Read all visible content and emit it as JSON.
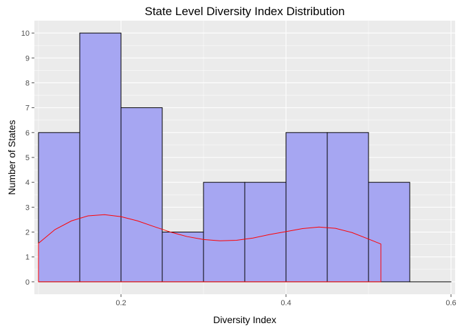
{
  "chart_data": {
    "type": "bar",
    "title": "State Level Diversity Index Distribution",
    "xlabel": "Diversity Index",
    "ylabel": "Number of States",
    "xlim": [
      0.095,
      0.605
    ],
    "ylim": [
      -0.5,
      10.5
    ],
    "x_ticks": [
      0.2,
      0.4,
      0.6
    ],
    "y_ticks": [
      0,
      1,
      2,
      3,
      4,
      5,
      6,
      7,
      8,
      9,
      10
    ],
    "grid": true,
    "bin_edges": [
      0.1,
      0.15,
      0.2,
      0.25,
      0.3,
      0.35,
      0.4,
      0.45,
      0.5,
      0.55,
      0.6
    ],
    "values": [
      6,
      10,
      7,
      2,
      4,
      4,
      6,
      6,
      4,
      0
    ],
    "density_curve": {
      "x": [
        0.1,
        0.12,
        0.14,
        0.16,
        0.18,
        0.2,
        0.22,
        0.24,
        0.26,
        0.28,
        0.3,
        0.32,
        0.34,
        0.36,
        0.38,
        0.4,
        0.42,
        0.44,
        0.46,
        0.48,
        0.5,
        0.515
      ],
      "y": [
        1.55,
        2.1,
        2.45,
        2.65,
        2.7,
        2.62,
        2.45,
        2.22,
        2.0,
        1.82,
        1.7,
        1.65,
        1.67,
        1.76,
        1.9,
        2.02,
        2.14,
        2.2,
        2.15,
        1.98,
        1.72,
        1.52
      ]
    },
    "colors": {
      "panel": "#ebebeb",
      "grid_major": "#ffffff",
      "bar_fill": "#a6a6f2",
      "bar_stroke": "#000000",
      "curve": "#ff0000",
      "tick": "#4d4d4d"
    }
  }
}
